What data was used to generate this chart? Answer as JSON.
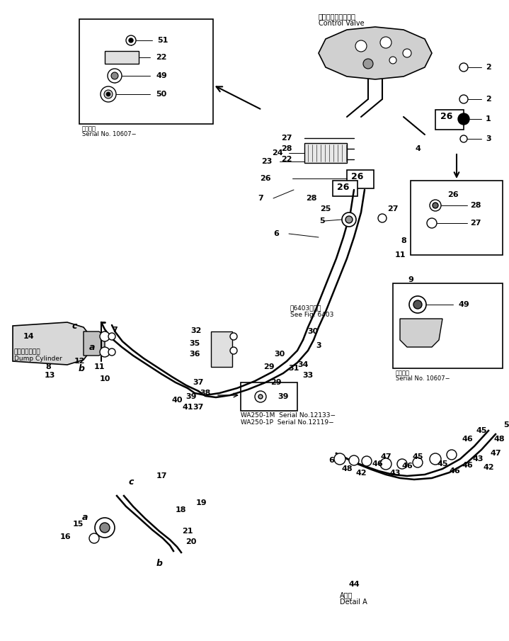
{
  "figsize": [
    7.19,
    9.05
  ],
  "dpi": 100,
  "bg": "#ffffff",
  "lc": "#000000",
  "labels": {
    "cv_jp": "コントロールバルブ",
    "cv_en": "Control Valve",
    "dc_jp": "ダンプシリンダ",
    "dc_en": "Dump Cylinder",
    "sn1_jp": "適用号機",
    "sn1_en": "Serial No. 10607−",
    "see_fig_jp": "图6403図参照",
    "see_fig_en": "See Fig. 6403",
    "detail_jp": "A詳細",
    "detail_en": "Detail A",
    "wa250_1": "WA250-1M  Serial No.12133−",
    "wa250_2": "WA250-1P  Serial No.12119−",
    "applicable_jp": "適用号機"
  }
}
